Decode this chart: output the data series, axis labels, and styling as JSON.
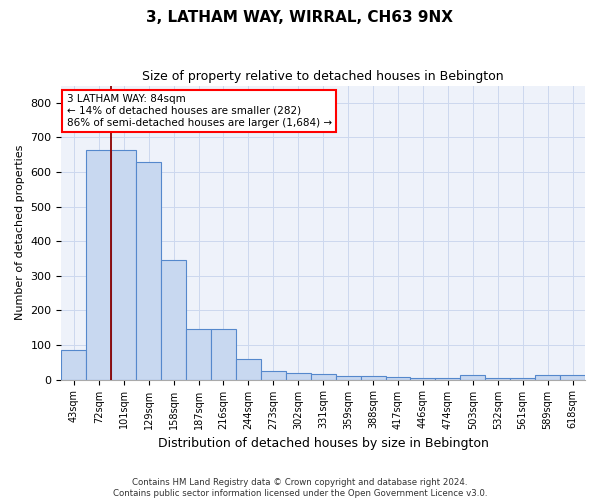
{
  "title1": "3, LATHAM WAY, WIRRAL, CH63 9NX",
  "title2": "Size of property relative to detached houses in Bebington",
  "xlabel": "Distribution of detached houses by size in Bebington",
  "ylabel": "Number of detached properties",
  "bin_labels": [
    "43sqm",
    "72sqm",
    "101sqm",
    "129sqm",
    "158sqm",
    "187sqm",
    "216sqm",
    "244sqm",
    "273sqm",
    "302sqm",
    "331sqm",
    "359sqm",
    "388sqm",
    "417sqm",
    "446sqm",
    "474sqm",
    "503sqm",
    "532sqm",
    "561sqm",
    "589sqm",
    "618sqm"
  ],
  "bar_heights": [
    85,
    665,
    665,
    630,
    345,
    145,
    145,
    60,
    25,
    18,
    15,
    10,
    10,
    8,
    5,
    5,
    12,
    5,
    5,
    12,
    12
  ],
  "bar_color": "#c8d8f0",
  "bar_edge_color": "#5588cc",
  "vline_color": "#8b0000",
  "ylim": [
    0,
    850
  ],
  "yticks": [
    0,
    100,
    200,
    300,
    400,
    500,
    600,
    700,
    800
  ],
  "annotation_line1": "3 LATHAM WAY: 84sqm",
  "annotation_line2": "← 14% of detached houses are smaller (282)",
  "annotation_line3": "86% of semi-detached houses are larger (1,684) →",
  "footer1": "Contains HM Land Registry data © Crown copyright and database right 2024.",
  "footer2": "Contains public sector information licensed under the Open Government Licence v3.0.",
  "grid_color": "#ccd8ee",
  "bg_color": "#eef2fa"
}
